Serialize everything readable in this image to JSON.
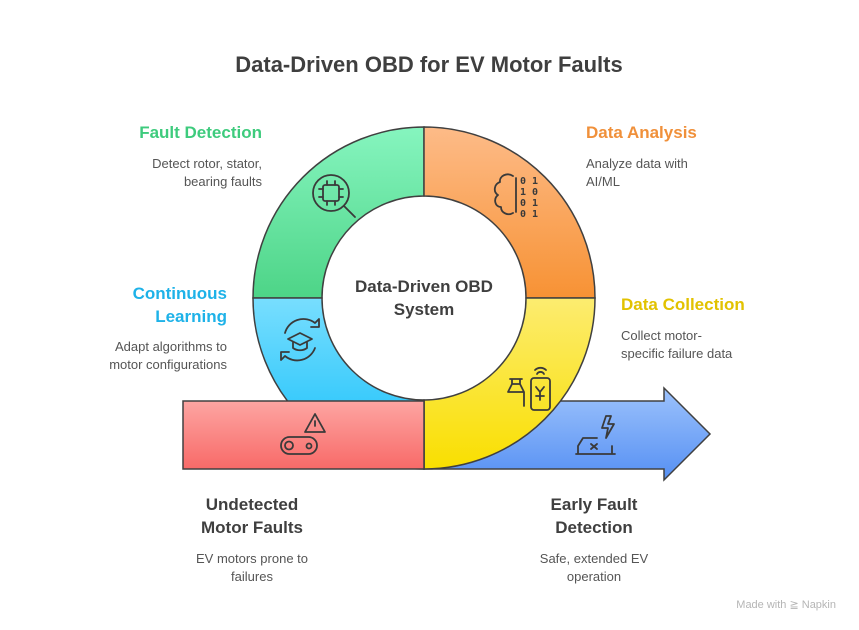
{
  "title": "Data-Driven OBD for EV Motor Faults",
  "center": {
    "line1": "Data-Driven OBD",
    "line2": "System"
  },
  "stages": {
    "fault_detection": {
      "title": "Fault Detection",
      "desc1": "Detect rotor, stator,",
      "desc2": "bearing faults",
      "color": "#3ecb7d",
      "icon": "chip-magnifier-icon"
    },
    "data_analysis": {
      "title": "Data Analysis",
      "desc1": "Analyze data with",
      "desc2": "AI/ML",
      "color": "#f0903a",
      "icon": "brain-binary-icon"
    },
    "continuous_learning": {
      "title1": "Continuous",
      "title2": "Learning",
      "desc1": "Adapt algorithms to",
      "desc2": "motor configurations",
      "color": "#1eb2e8",
      "icon": "graduation-cycle-icon"
    },
    "data_collection": {
      "title": "Data Collection",
      "desc1": "Collect motor-",
      "desc2": "specific failure data",
      "color": "#e2c200",
      "icon": "phone-signal-icon"
    }
  },
  "start": {
    "title1": "Undetected",
    "title2": "Motor Faults",
    "desc1": "EV motors prone to",
    "desc2": "failures",
    "icon": "warning-motor-icon"
  },
  "end": {
    "title1": "Early Fault",
    "title2": "Detection",
    "desc1": "Safe, extended EV",
    "desc2": "operation",
    "icon": "car-bolt-icon"
  },
  "watermark": "Made with ≧ Napkin"
}
